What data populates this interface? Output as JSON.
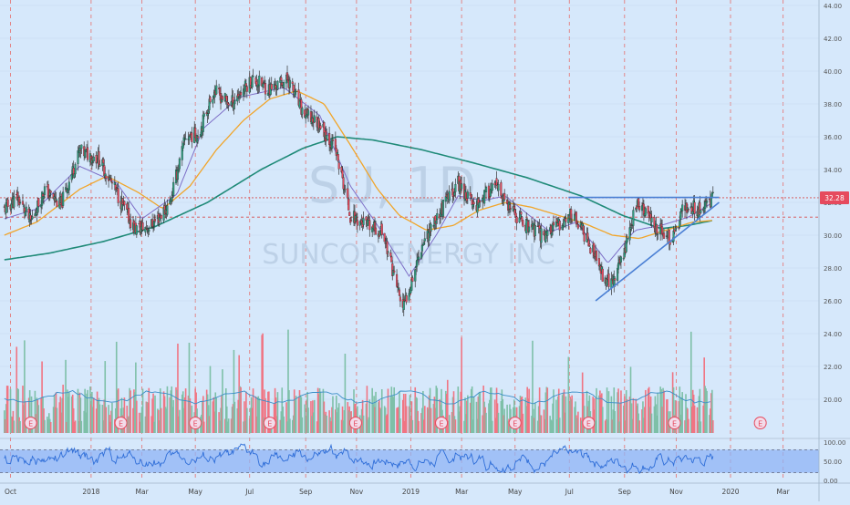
{
  "watermark": {
    "symbol": "SU, 1D",
    "company": "SUNCOR ENERGY INC"
  },
  "colors": {
    "background": "#d6e8fb",
    "grid": "#e47c7c",
    "candle_up": "#2f9e80",
    "candle_down": "#e64a5e",
    "volume_up": "#7ec0a8",
    "volume_down": "#f07583",
    "sma_fast": "#7e6fc7",
    "sma_mid": "#f1a52a",
    "sma_slow": "#1f8a78",
    "trendline": "#4a7fd4",
    "price_label_bg": "#e64a5e",
    "rsi_band": "#8fb4f5",
    "rsi_line": "#2f6ed8",
    "earnings_marker": "#e64a5e"
  },
  "chart_data": {
    "type": "candlestick",
    "x_ticks": [
      "Oct",
      "2018",
      "Mar",
      "May",
      "Jul",
      "Sep",
      "Nov",
      "2019",
      "Mar",
      "May",
      "Jul",
      "Sep",
      "Nov",
      "2020",
      "Mar"
    ],
    "y_ticks": [
      "44.00",
      "42.00",
      "40.00",
      "38.00",
      "36.00",
      "34.00",
      "32.00",
      "30.00",
      "28.00",
      "26.00",
      "24.00",
      "22.00",
      "20.00"
    ],
    "ylim": [
      19.0,
      44.0
    ],
    "last_price": "32.28",
    "price_series_keypoints": [
      [
        "2017-09-25",
        31.6
      ],
      [
        "2017-10-10",
        32.3
      ],
      [
        "2017-10-25",
        30.8
      ],
      [
        "2017-11-10",
        32.8
      ],
      [
        "2017-11-28",
        31.8
      ],
      [
        "2017-12-20",
        35.1
      ],
      [
        "2018-01-10",
        34.7
      ],
      [
        "2018-01-31",
        32.6
      ],
      [
        "2018-02-20",
        30.4
      ],
      [
        "2018-03-10",
        30.5
      ],
      [
        "2018-04-01",
        31.8
      ],
      [
        "2018-04-20",
        36.0
      ],
      [
        "2018-05-05",
        36.2
      ],
      [
        "2018-05-22",
        38.8
      ],
      [
        "2018-06-10",
        38.0
      ],
      [
        "2018-07-05",
        39.5
      ],
      [
        "2018-07-25",
        38.9
      ],
      [
        "2018-08-15",
        39.5
      ],
      [
        "2018-09-01",
        37.4
      ],
      [
        "2018-09-20",
        36.8
      ],
      [
        "2018-10-08",
        35.2
      ],
      [
        "2018-10-25",
        31.2
      ],
      [
        "2018-11-15",
        30.5
      ],
      [
        "2018-12-01",
        30.2
      ],
      [
        "2018-12-24",
        25.5
      ],
      [
        "2019-01-15",
        29.5
      ],
      [
        "2019-02-05",
        31.5
      ],
      [
        "2019-02-25",
        33.2
      ],
      [
        "2019-03-15",
        31.8
      ],
      [
        "2019-04-08",
        33.0
      ],
      [
        "2019-04-25",
        31.5
      ],
      [
        "2019-05-15",
        30.6
      ],
      [
        "2019-06-01",
        30.0
      ],
      [
        "2019-06-20",
        30.6
      ],
      [
        "2019-07-05",
        31.3
      ],
      [
        "2019-07-22",
        29.8
      ],
      [
        "2019-08-10",
        27.5
      ],
      [
        "2019-08-20",
        27.0
      ],
      [
        "2019-09-05",
        29.5
      ],
      [
        "2019-09-17",
        32.0
      ],
      [
        "2019-09-30",
        31.1
      ],
      [
        "2019-10-15",
        30.2
      ],
      [
        "2019-10-28",
        29.7
      ],
      [
        "2019-11-10",
        31.8
      ],
      [
        "2019-11-28",
        31.6
      ],
      [
        "2019-12-13",
        32.28
      ]
    ],
    "sma_fast_keypoints": [
      [
        "2017-09-25",
        31.0
      ],
      [
        "2017-11-01",
        31.6
      ],
      [
        "2017-12-20",
        34.2
      ],
      [
        "2018-01-31",
        33.2
      ],
      [
        "2018-03-01",
        31.0
      ],
      [
        "2018-04-10",
        32.5
      ],
      [
        "2018-05-10",
        36.5
      ],
      [
        "2018-06-20",
        38.4
      ],
      [
        "2018-08-10",
        39.0
      ],
      [
        "2018-09-20",
        37.3
      ],
      [
        "2018-10-25",
        33.0
      ],
      [
        "2018-11-25",
        30.6
      ],
      [
        "2018-12-31",
        27.5
      ],
      [
        "2019-01-31",
        30.0
      ],
      [
        "2019-02-25",
        32.4
      ],
      [
        "2019-03-25",
        32.1
      ],
      [
        "2019-04-20",
        32.4
      ],
      [
        "2019-05-15",
        31.3
      ],
      [
        "2019-06-10",
        30.2
      ],
      [
        "2019-07-10",
        30.8
      ],
      [
        "2019-08-15",
        28.3
      ],
      [
        "2019-09-15",
        30.3
      ],
      [
        "2019-10-15",
        30.6
      ],
      [
        "2019-11-15",
        31.1
      ],
      [
        "2019-12-13",
        32.0
      ]
    ],
    "sma_mid_keypoints": [
      [
        "2017-09-25",
        30.0
      ],
      [
        "2017-11-01",
        30.8
      ],
      [
        "2017-12-20",
        32.8
      ],
      [
        "2018-01-20",
        33.6
      ],
      [
        "2018-02-25",
        32.6
      ],
      [
        "2018-03-25",
        31.6
      ],
      [
        "2018-04-25",
        33.0
      ],
      [
        "2018-05-25",
        35.2
      ],
      [
        "2018-06-25",
        37.0
      ],
      [
        "2018-07-25",
        38.3
      ],
      [
        "2018-08-25",
        38.8
      ],
      [
        "2018-09-25",
        38.0
      ],
      [
        "2018-10-25",
        35.5
      ],
      [
        "2018-11-25",
        32.8
      ],
      [
        "2018-12-20",
        31.2
      ],
      [
        "2019-01-20",
        30.3
      ],
      [
        "2019-02-20",
        30.6
      ],
      [
        "2019-03-20",
        31.5
      ],
      [
        "2019-04-20",
        32.0
      ],
      [
        "2019-05-20",
        31.7
      ],
      [
        "2019-06-20",
        31.2
      ],
      [
        "2019-07-20",
        30.7
      ],
      [
        "2019-08-20",
        30.0
      ],
      [
        "2019-09-20",
        29.8
      ],
      [
        "2019-10-20",
        30.3
      ],
      [
        "2019-11-20",
        30.8
      ],
      [
        "2019-12-13",
        30.9
      ]
    ],
    "sma_slow_keypoints": [
      [
        "2017-09-25",
        28.5
      ],
      [
        "2017-11-15",
        28.9
      ],
      [
        "2018-01-15",
        29.6
      ],
      [
        "2018-03-15",
        30.5
      ],
      [
        "2018-05-15",
        32.0
      ],
      [
        "2018-07-15",
        34.0
      ],
      [
        "2018-09-01",
        35.3
      ],
      [
        "2018-10-10",
        36.0
      ],
      [
        "2018-11-20",
        35.8
      ],
      [
        "2019-01-15",
        35.2
      ],
      [
        "2019-03-15",
        34.4
      ],
      [
        "2019-05-15",
        33.5
      ],
      [
        "2019-07-15",
        32.4
      ],
      [
        "2019-09-01",
        31.2
      ],
      [
        "2019-10-15",
        30.4
      ],
      [
        "2019-11-15",
        30.6
      ],
      [
        "2019-12-13",
        30.9
      ]
    ],
    "resistance_line": {
      "from": [
        "2019-07-01",
        32.3
      ],
      "to": [
        "2019-12-20",
        32.3
      ]
    },
    "support_trendline": {
      "from": [
        "2019-08-01",
        26.0
      ],
      "to": [
        "2019-12-20",
        32.0
      ]
    },
    "horizontal_levels": [
      32.28,
      31.1
    ],
    "earnings_dates": [
      "2017-10-25",
      "2018-02-05",
      "2018-05-01",
      "2018-07-25",
      "2018-10-31",
      "2019-02-06",
      "2019-05-01",
      "2019-07-24",
      "2019-10-30",
      "2020-02-05"
    ],
    "earnings_label": "E",
    "rsi_ticks": [
      "100.00",
      "50.00",
      "0.00"
    ],
    "rsi_band": [
      20,
      80
    ]
  }
}
